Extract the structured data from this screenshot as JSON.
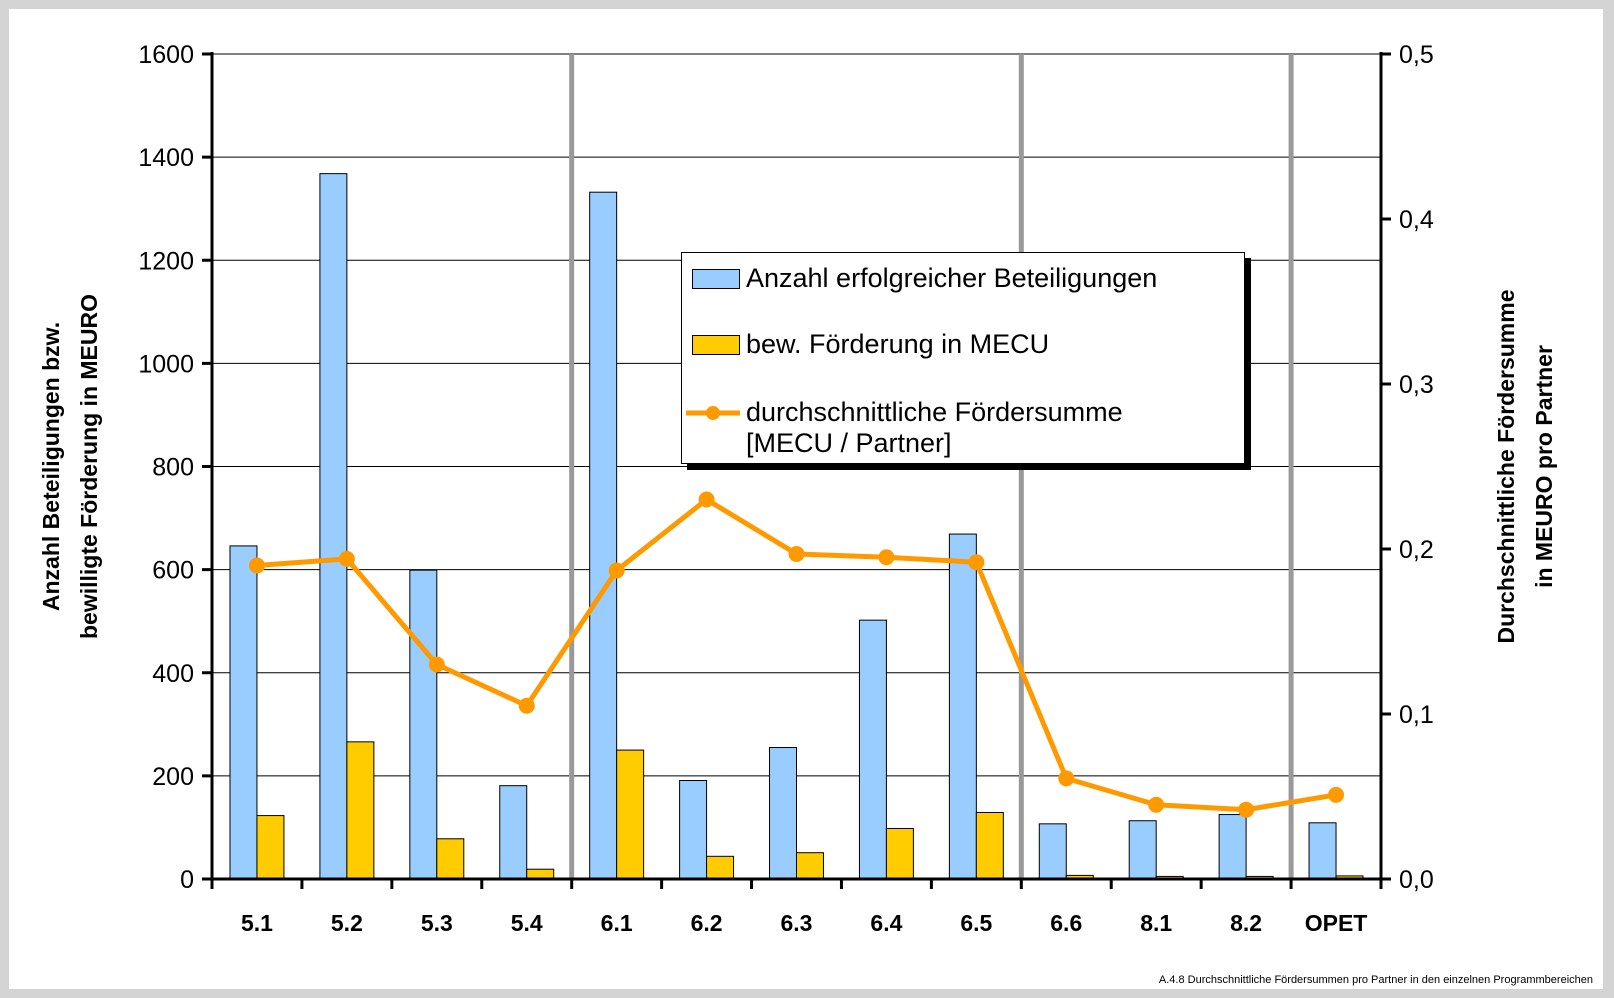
{
  "chart_data": {
    "type": "bar",
    "categories": [
      "5.1",
      "5.2",
      "5.3",
      "5.4",
      "6.1",
      "6.2",
      "6.3",
      "6.4",
      "6.5",
      "6.6",
      "8.1",
      "8.2",
      "OPET"
    ],
    "series": [
      {
        "name": "Anzahl erfolgreicher Beteiligungen",
        "type": "bar",
        "axis": "left",
        "color": "#99ccff",
        "values": [
          646,
          1368,
          599,
          181,
          1332,
          191,
          255,
          502,
          669,
          107,
          113,
          125,
          109
        ]
      },
      {
        "name": "bew. Förderung in MECU",
        "type": "bar",
        "axis": "left",
        "color": "#ffcc00",
        "values": [
          123,
          266,
          78,
          19,
          250,
          44,
          51,
          98,
          129,
          7,
          5,
          5,
          6
        ]
      },
      {
        "name": "durchschnittliche Fördersumme\n[MECU / Partner]",
        "type": "line",
        "axis": "right",
        "color": "#ff9900",
        "values": [
          0.19,
          0.194,
          0.13,
          0.105,
          0.187,
          0.23,
          0.197,
          0.195,
          0.192,
          0.061,
          0.045,
          0.042,
          0.051
        ]
      }
    ],
    "ylabel": "Anzahl Beteiligungen bzw.\nbewilligte Förderung in MEURO",
    "y2label": "Durchschnittliche Fördersumme\nin MEURO pro Partner",
    "ylim": [
      0,
      1600
    ],
    "y2lim": [
      0,
      0.5
    ],
    "yticks": [
      "0",
      "200",
      "400",
      "600",
      "800",
      "1000",
      "1200",
      "1400",
      "1600"
    ],
    "y2ticks": [
      "0,0",
      "0,1",
      "0,2",
      "0,3",
      "0,4",
      "0,5"
    ],
    "grid": true,
    "separators_after": [
      "5.4",
      "6.5",
      "8.2"
    ],
    "legend": "top-center"
  },
  "caption": "A.4.8 Durchschnittliche Fördersummen pro Partner in den einzelnen Programmbereichen"
}
